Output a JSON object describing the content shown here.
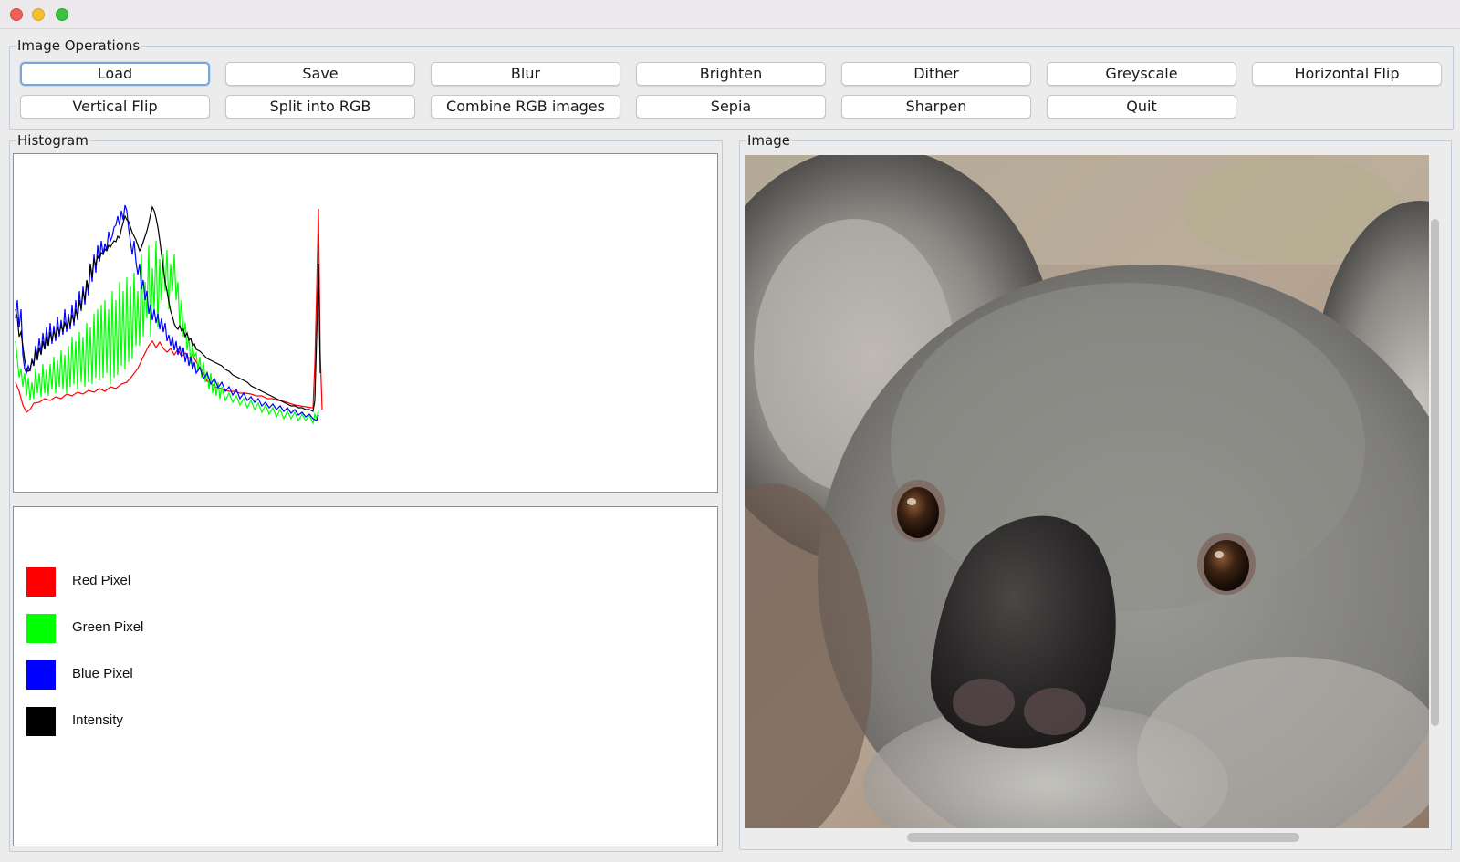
{
  "window": {
    "traffic_lights": [
      "close",
      "minimize",
      "maximize"
    ]
  },
  "operations": {
    "title": "Image Operations",
    "buttons": [
      {
        "label": "Load",
        "focused": true
      },
      {
        "label": "Save"
      },
      {
        "label": "Blur"
      },
      {
        "label": "Brighten"
      },
      {
        "label": "Dither"
      },
      {
        "label": "Greyscale"
      },
      {
        "label": "Horizontal Flip"
      },
      {
        "label": "Vertical Flip"
      },
      {
        "label": "Split into RGB"
      },
      {
        "label": "Combine RGB images"
      },
      {
        "label": "Sepia"
      },
      {
        "label": "Sharpen"
      },
      {
        "label": "Quit"
      }
    ]
  },
  "histogram": {
    "title": "Histogram",
    "legend": [
      {
        "label": "Red Pixel",
        "color": "#ff0000"
      },
      {
        "label": "Green Pixel",
        "color": "#00ff00"
      },
      {
        "label": "Blue Pixel",
        "color": "#0000ff"
      },
      {
        "label": "Intensity",
        "color": "#000000"
      }
    ]
  },
  "image_panel": {
    "title": "Image",
    "content": "koala-photo"
  }
}
